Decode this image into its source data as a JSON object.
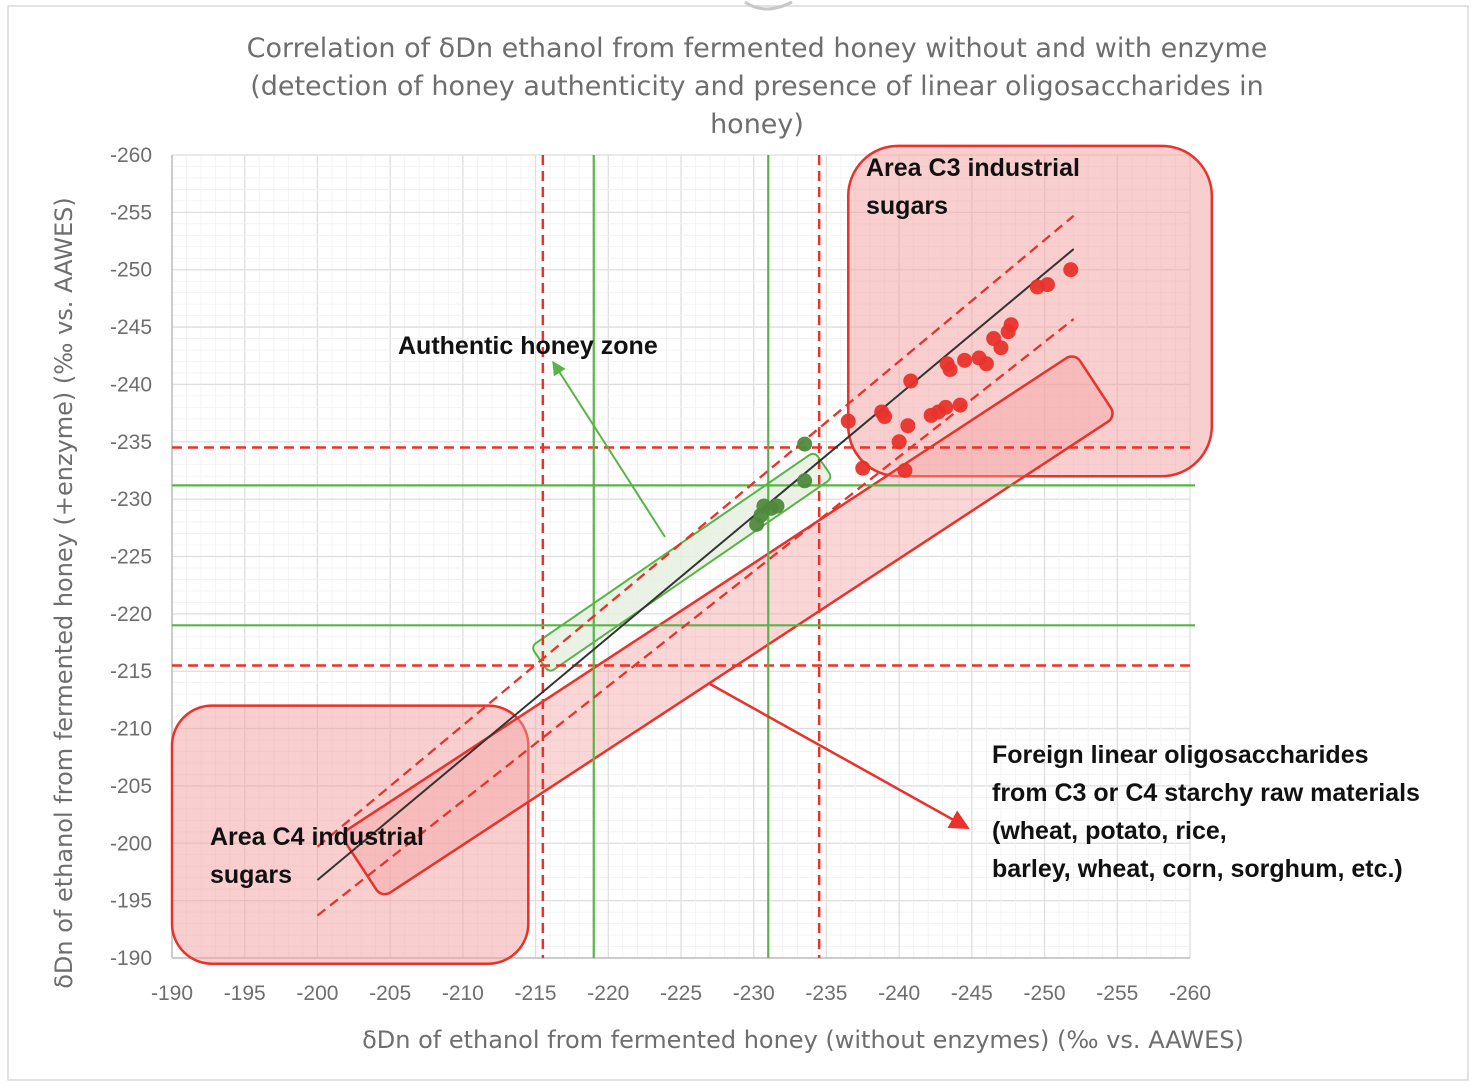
{
  "chart_data": {
    "type": "scatter",
    "title_lines": [
      "Correlation of δDn ethanol from fermented honey without and with enzyme",
      "(detection of honey authenticity and presence of linear oligosaccharides in",
      "honey)"
    ],
    "xlabel": "δDn of ethanol from fermented honey (without enzymes) (‰ vs. AAWES)",
    "ylabel": "δDn of ethanol from fermented honey (+enzyme) (‰ vs. AAWES)",
    "xlim": [
      -190,
      -260
    ],
    "ylim": [
      -190,
      -260
    ],
    "xticks": [
      "-190",
      "-195",
      "-200",
      "-205",
      "-210",
      "-215",
      "-220",
      "-225",
      "-230",
      "-235",
      "-240",
      "-245",
      "-250",
      "-255",
      "-260"
    ],
    "yticks": [
      "-190",
      "-195",
      "-200",
      "-205",
      "-210",
      "-215",
      "-220",
      "-225",
      "-230",
      "-235",
      "-240",
      "-245",
      "-250",
      "-255",
      "-260"
    ],
    "grid": true,
    "colors": {
      "red": "#e8322b",
      "green": "#5ab348",
      "red_fill": "#f4a5a5",
      "green_fill": "#e6f0e0",
      "dark_green": "#4f8a3c",
      "regression": "#333333"
    },
    "series": [
      {
        "color": "#e8322b",
        "points": [
          [
            -236.5,
            -236.8
          ],
          [
            -237.5,
            -232.7
          ],
          [
            -238.8,
            -237.6
          ],
          [
            -239,
            -237.2
          ],
          [
            -240,
            -235
          ],
          [
            -240.4,
            -232.5
          ],
          [
            -240.6,
            -236.4
          ],
          [
            -240.8,
            -240.3
          ],
          [
            -242.2,
            -237.3
          ],
          [
            -242.7,
            -237.6
          ],
          [
            -243.2,
            -238
          ],
          [
            -243.3,
            -241.8
          ],
          [
            -243.5,
            -241.3
          ],
          [
            -244.2,
            -238.2
          ],
          [
            -244.5,
            -242.1
          ],
          [
            -245.5,
            -242.3
          ],
          [
            -246,
            -241.8
          ],
          [
            -246.5,
            -244
          ],
          [
            -247,
            -243.2
          ],
          [
            -247.5,
            -244.6
          ],
          [
            -247.7,
            -245.2
          ],
          [
            -249.5,
            -248.5
          ],
          [
            -250.2,
            -248.7
          ],
          [
            -251.8,
            -250
          ]
        ]
      },
      {
        "color": "#4f8a3c",
        "points": [
          [
            -230.2,
            -227.8
          ],
          [
            -230.5,
            -228.6
          ],
          [
            -230.7,
            -229.4
          ],
          [
            -231.2,
            -229.2
          ],
          [
            -231.6,
            -229.4
          ],
          [
            -233.5,
            -231.6
          ],
          [
            -233.5,
            -234.8
          ]
        ]
      }
    ],
    "regression": {
      "from": [
        -200,
        -196.8
      ],
      "to": [
        -252,
        -251.8
      ],
      "color": "#333333"
    },
    "prediction_bands": [
      {
        "from": [
          -200,
          -193.7
        ],
        "to": [
          -252,
          -245.7
        ]
      },
      {
        "from": [
          -200,
          -199.7
        ],
        "to": [
          -252,
          -254.7
        ]
      }
    ],
    "authentic_limits": {
      "red_dashed_x": [
        -215.5,
        -234.5
      ],
      "red_dashed_y": [
        -215.5,
        -234.5
      ],
      "green_x": [
        -219,
        -231
      ],
      "green_y": [
        -219,
        -231.2
      ]
    },
    "annotations": {
      "c3_area": [
        "Area C3 industrial",
        "sugars"
      ],
      "c4_area": [
        "Area C4 industrial",
        "sugars"
      ],
      "authentic_zone": "Authentic honey zone",
      "foreign": [
        "Foreign linear oligosaccharides",
        "from C3 or C4 starchy raw materials",
        "(wheat, potato, rice,",
        "barley, wheat, corn, sorghum, etc.)"
      ]
    }
  }
}
